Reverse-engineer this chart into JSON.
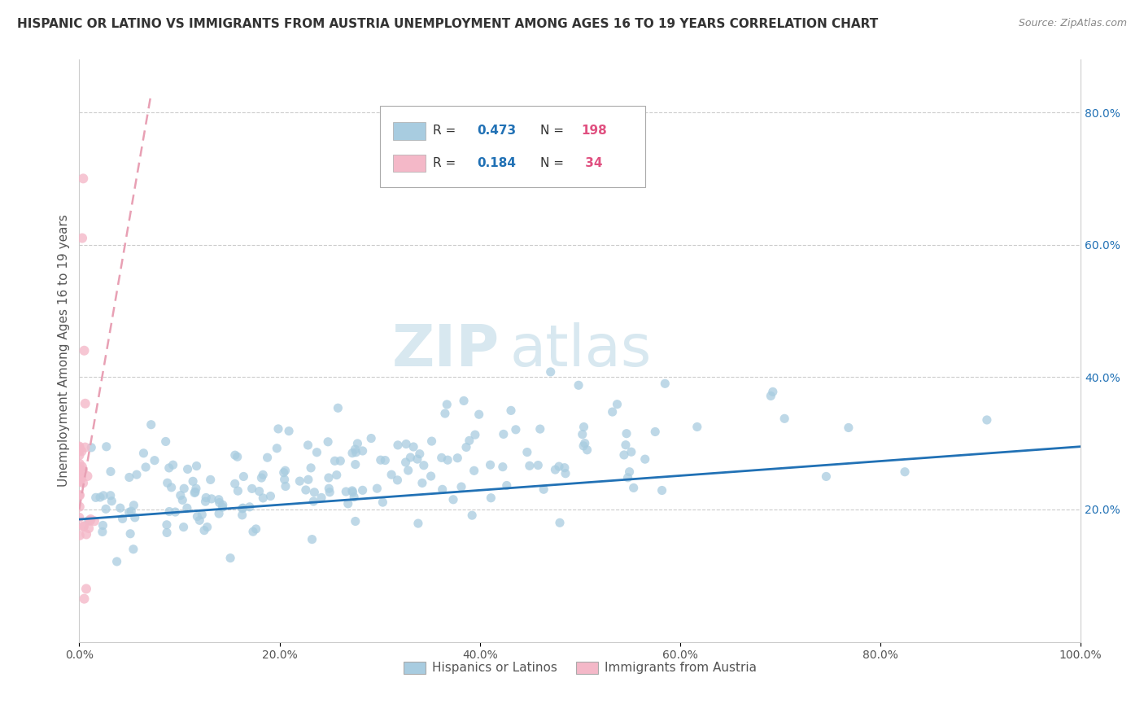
{
  "title": "HISPANIC OR LATINO VS IMMIGRANTS FROM AUSTRIA UNEMPLOYMENT AMONG AGES 16 TO 19 YEARS CORRELATION CHART",
  "source": "Source: ZipAtlas.com",
  "ylabel": "Unemployment Among Ages 16 to 19 years",
  "watermark_part1": "ZIP",
  "watermark_part2": "atlas",
  "legend_label1": "Hispanics or Latinos",
  "legend_label2": "Immigrants from Austria",
  "blue_color": "#a8cce0",
  "pink_color": "#f4b8c8",
  "blue_line_color": "#2171b5",
  "pink_line_color": "#e8a0b4",
  "r_color": "#2171b5",
  "n_color": "#e05080",
  "title_fontsize": 11,
  "axis_label_fontsize": 11,
  "tick_fontsize": 10,
  "watermark_color": "#d8e8f0",
  "background_color": "#ffffff",
  "grid_color": "#cccccc",
  "legend_fontsize": 11,
  "xlim_max": 1.0,
  "ylim_max": 0.88,
  "ytick_vals": [
    0.2,
    0.4,
    0.6,
    0.8
  ],
  "xtick_vals": [
    0.0,
    0.2,
    0.4,
    0.6,
    0.8,
    1.0
  ]
}
